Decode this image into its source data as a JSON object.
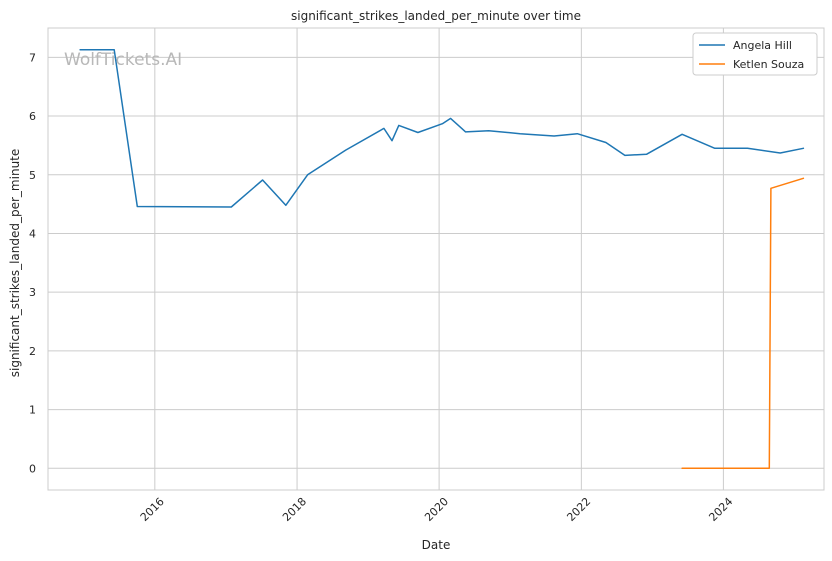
{
  "watermark": "WolfTickets.AI",
  "chart_data": {
    "type": "line",
    "title": "significant_strikes_landed_per_minute over time",
    "xlabel": "Date",
    "ylabel": "significant_strikes_landed_per_minute",
    "x_axis_type": "date",
    "xlim": [
      "2014-07-01",
      "2025-06-01"
    ],
    "ylim": [
      -0.37,
      7.5
    ],
    "x_ticks": [
      "2016",
      "2018",
      "2020",
      "2022",
      "2024"
    ],
    "y_ticks": [
      "0",
      "1",
      "2",
      "3",
      "4",
      "5",
      "6",
      "7"
    ],
    "grid": true,
    "legend_position": "top-right",
    "series": [
      {
        "name": "Angela Hill",
        "color": "#1f77b4",
        "x": [
          "2014-12-13",
          "2015-06-06",
          "2015-10-03",
          "2017-01-28",
          "2017-07-08",
          "2017-11-04",
          "2018-02-24",
          "2018-09-08",
          "2019-03-23",
          "2019-05-04",
          "2019-06-08",
          "2019-09-14",
          "2020-01-18",
          "2020-02-29",
          "2020-05-16",
          "2020-09-12",
          "2021-02-20",
          "2021-08-14",
          "2021-12-11",
          "2022-05-07",
          "2022-08-13",
          "2022-12-03",
          "2023-06-03",
          "2023-11-18",
          "2024-05-04",
          "2024-10-19",
          "2025-02-15"
        ],
        "y": [
          7.13,
          7.13,
          4.46,
          4.45,
          4.91,
          4.48,
          5.0,
          5.42,
          5.79,
          5.58,
          5.84,
          5.72,
          5.87,
          5.96,
          5.73,
          5.75,
          5.7,
          5.66,
          5.7,
          5.55,
          5.33,
          5.35,
          5.69,
          5.45,
          5.45,
          5.37,
          5.45
        ]
      },
      {
        "name": "Ketlen Souza",
        "color": "#ff7f0e",
        "x": [
          "2023-06-03",
          "2024-04-15",
          "2024-08-24",
          "2024-09-01",
          "2025-02-15"
        ],
        "y": [
          0.0,
          0.0,
          0.0,
          4.77,
          4.94
        ]
      }
    ]
  }
}
